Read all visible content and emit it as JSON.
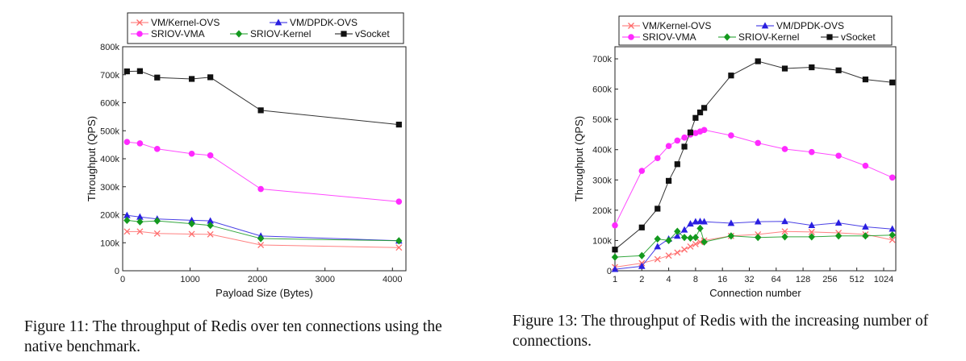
{
  "charts": [
    {
      "caption": "Figure 11: The throughput of Redis over ten connections using the native benchmark.",
      "chart_data": {
        "type": "line",
        "title": "",
        "xlabel": "Payload Size (Bytes)",
        "ylabel": "Throughput (QPS)",
        "x_scale": "linear",
        "xlim": [
          0,
          4200
        ],
        "ylim": [
          0,
          800000
        ],
        "x_ticks": [
          0,
          1000,
          2000,
          3000,
          4000
        ],
        "x_tick_labels": [
          "0",
          "1000",
          "2000",
          "3000",
          "4000"
        ],
        "y_ticks": [
          0,
          100000,
          200000,
          300000,
          400000,
          500000,
          600000,
          700000,
          800000
        ],
        "y_tick_labels": [
          "0",
          "100k",
          "200k",
          "300k",
          "400k",
          "500k",
          "600k",
          "700k",
          "800k"
        ],
        "grid": false,
        "legend": "top",
        "x": [
          64,
          256,
          512,
          1024,
          1300,
          2048,
          4096
        ],
        "series": [
          {
            "name": "VM/Kernel-OVS",
            "color": "#ff6b6b",
            "marker": "x",
            "values": [
              140000,
              140000,
              133000,
              131000,
              130000,
              92000,
              83000
            ]
          },
          {
            "name": "VM/DPDK-OVS",
            "color": "#2a1fe0",
            "marker": "triangle",
            "values": [
              198000,
              192000,
              185000,
              180000,
              178000,
              124000,
              107000
            ]
          },
          {
            "name": "SRIOV-VMA",
            "color": "#ff2aff",
            "marker": "circle",
            "values": [
              460000,
              455000,
              435000,
              418000,
              412000,
              292000,
              247000
            ]
          },
          {
            "name": "SRIOV-Kernel",
            "color": "#13991e",
            "marker": "diamond",
            "values": [
              180000,
              175000,
              178000,
              168000,
              162000,
              115000,
              107000
            ]
          },
          {
            "name": "vSocket",
            "color": "#111111",
            "marker": "square",
            "values": [
              712000,
              713000,
              690000,
              685000,
              691000,
              573000,
              522000
            ]
          }
        ]
      }
    },
    {
      "caption": "Figure 13: The throughput of Redis with the increasing number of connections.",
      "chart_data": {
        "type": "line",
        "title": "",
        "xlabel": "Connection number",
        "ylabel": "Throughput (QPS)",
        "x_scale": "log2",
        "xlim": [
          1,
          1400
        ],
        "ylim": [
          0,
          740000
        ],
        "x_ticks": [
          1,
          2,
          4,
          8,
          16,
          32,
          64,
          128,
          256,
          512,
          1024
        ],
        "x_tick_labels": [
          "1",
          "2",
          "4",
          "8",
          "16",
          "32",
          "64",
          "128",
          "256",
          "512",
          "1024"
        ],
        "y_ticks": [
          0,
          100000,
          200000,
          300000,
          400000,
          500000,
          600000,
          700000
        ],
        "y_tick_labels": [
          "0",
          "100k",
          "200k",
          "300k",
          "400k",
          "500k",
          "600k",
          "700k"
        ],
        "grid": false,
        "legend": "top",
        "x": [
          1,
          2,
          3,
          4,
          5,
          6,
          7,
          8,
          9,
          10,
          20,
          40,
          80,
          160,
          320,
          640,
          1280
        ],
        "series": [
          {
            "name": "VM/Kernel-OVS",
            "color": "#ff6b6b",
            "marker": "x",
            "values": [
              12000,
              25000,
              38000,
              50000,
              60000,
              70000,
              80000,
              88000,
              95000,
              100000,
              115000,
              120000,
              130000,
              128000,
              125000,
              120000,
              102000
            ]
          },
          {
            "name": "VM/DPDK-OVS",
            "color": "#2a1fe0",
            "marker": "triangle",
            "values": [
              5000,
              15000,
              80000,
              105000,
              115000,
              135000,
              155000,
              162000,
              163000,
              162000,
              157000,
              162000,
              163000,
              150000,
              158000,
              145000,
              138000
            ]
          },
          {
            "name": "SRIOV-VMA",
            "color": "#ff2aff",
            "marker": "circle",
            "values": [
              150000,
              330000,
              372000,
              412000,
              430000,
              440000,
              450000,
              455000,
              460000,
              465000,
              447000,
              422000,
              402000,
              392000,
              380000,
              347000,
              308000
            ]
          },
          {
            "name": "SRIOV-Kernel",
            "color": "#13991e",
            "marker": "diamond",
            "values": [
              45000,
              50000,
              105000,
              100000,
              130000,
              110000,
              108000,
              110000,
              140000,
              95000,
              115000,
              110000,
              112000,
              112000,
              115000,
              115000,
              118000
            ]
          },
          {
            "name": "vSocket",
            "color": "#111111",
            "marker": "square",
            "values": [
              70000,
              143000,
              205000,
              297000,
              352000,
              410000,
              457000,
              505000,
              523000,
              538000,
              645000,
              692000,
              668000,
              672000,
              662000,
              632000,
              622000
            ]
          }
        ]
      }
    }
  ]
}
